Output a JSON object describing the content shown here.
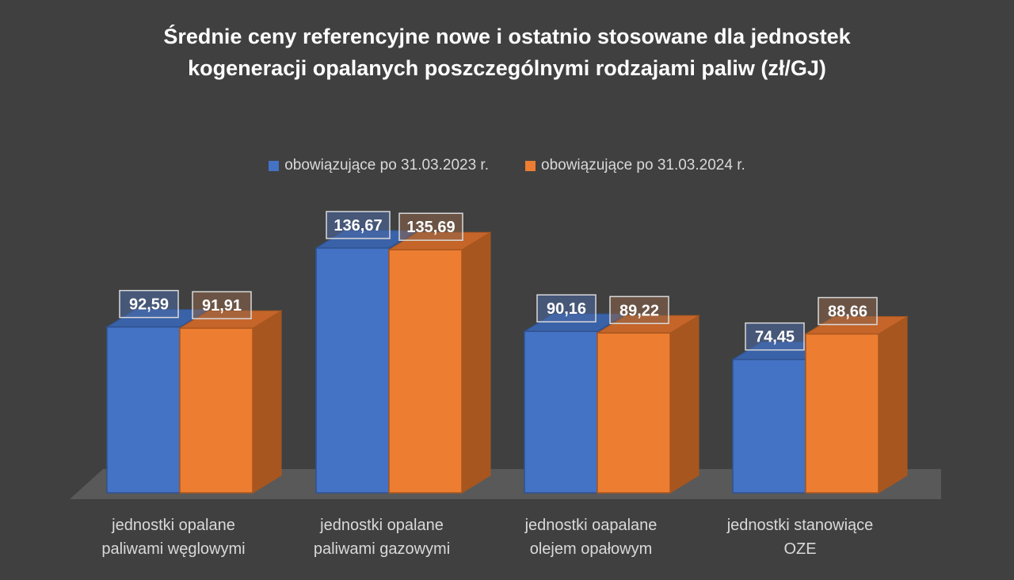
{
  "chart_data": {
    "type": "bar",
    "title_lines": [
      "Średnie ceny referencyjne nowe i ostatnio stosowane dla jednostek",
      "kogeneracji opalanych poszczególnymi rodzajami paliw (zł/GJ)"
    ],
    "categories": [
      [
        "jednostki opalane",
        "paliwami węglowymi"
      ],
      [
        "jednostki opalane",
        "paliwami gazowymi"
      ],
      [
        "jednostki oapalane",
        "olejem opałowym"
      ],
      [
        "jednostki stanowiące",
        "OZE"
      ]
    ],
    "series": [
      {
        "name": "obowiązujące po 31.03.2023 r.",
        "values": [
          92.59,
          136.67,
          90.16,
          74.45
        ],
        "labels": [
          "92,59",
          "136,67",
          "90,16",
          "74,45"
        ],
        "color": "#4472c4",
        "side_color": "#2f528f",
        "top_color": "#3a62a8"
      },
      {
        "name": "obowiązujące po 31.03.2024 r.",
        "values": [
          91.91,
          135.69,
          89.22,
          88.66
        ],
        "labels": [
          "91,91",
          "135,69",
          "89,22",
          "88,66"
        ],
        "color": "#ed7d31",
        "side_color": "#a8561f",
        "top_color": "#c5652a"
      }
    ],
    "ylim": [
      0,
      150
    ],
    "legend_position": "top",
    "grid": false
  }
}
